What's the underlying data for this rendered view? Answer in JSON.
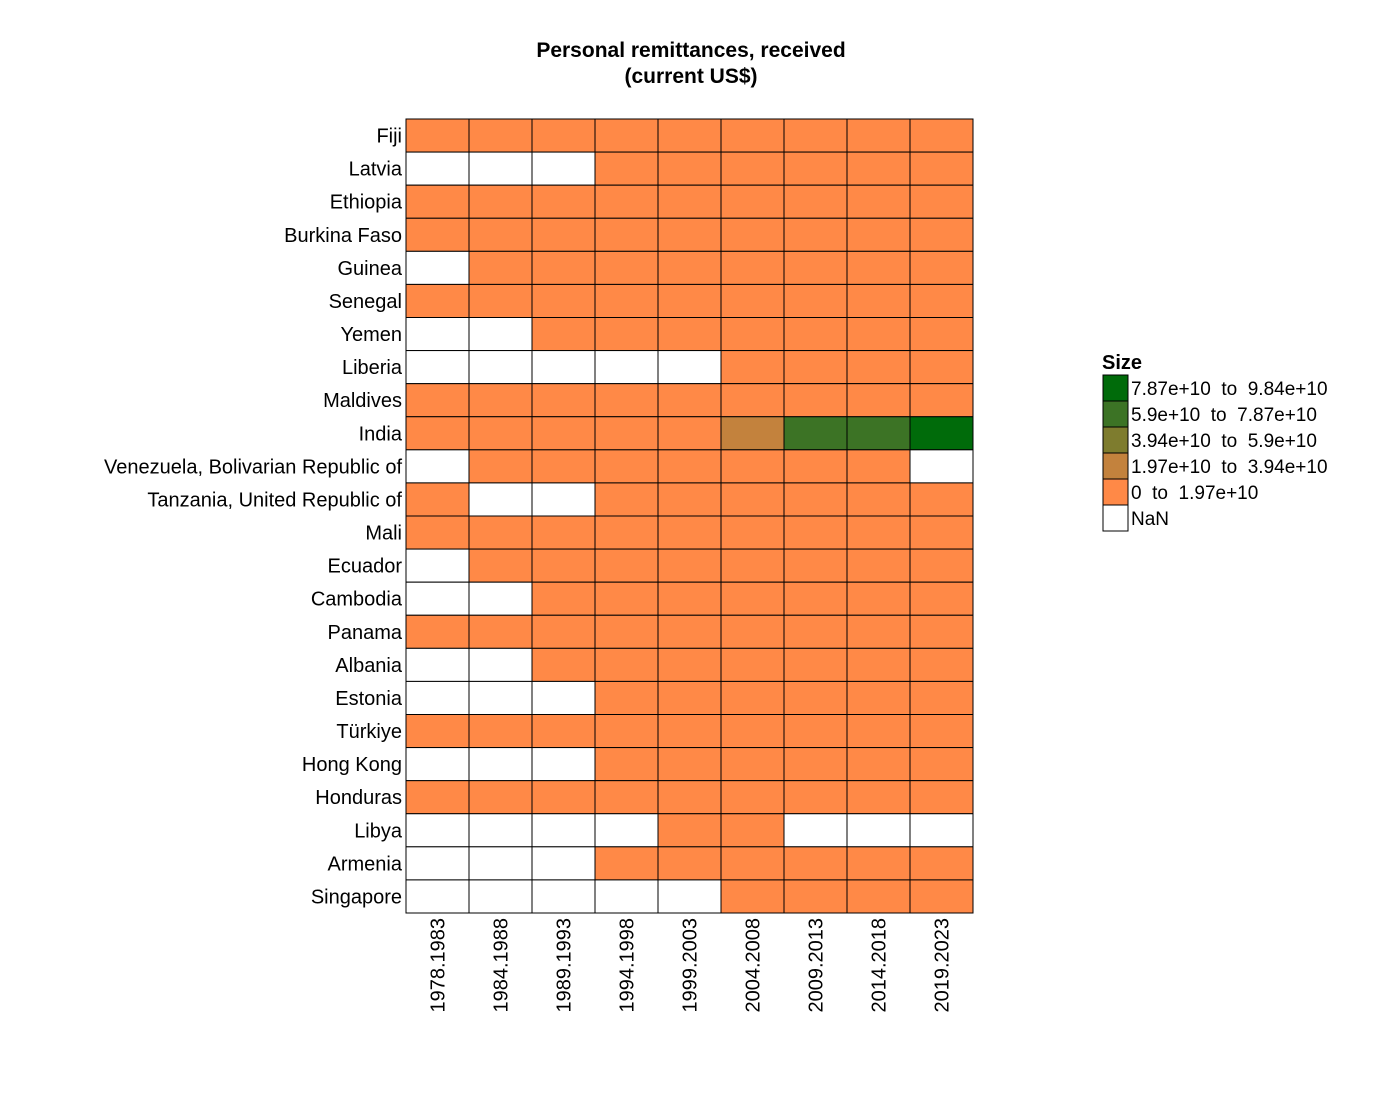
{
  "chart_data": {
    "type": "heatmap",
    "title_lines": [
      "Personal remittances, received",
      "(current US$)"
    ],
    "x": [
      "1978.1983",
      "1984.1988",
      "1989.1993",
      "1994.1998",
      "1999.2003",
      "2004.2008",
      "2009.2013",
      "2014.2018",
      "2019.2023"
    ],
    "y": [
      "Fiji",
      "Latvia",
      "Ethiopia",
      "Burkina Faso",
      "Guinea",
      "Senegal",
      "Yemen",
      "Liberia",
      "Maldives",
      "India",
      "Venezuela, Bolivarian Republic of",
      "Tanzania, United Republic of",
      "Mali",
      "Ecuador",
      "Cambodia",
      "Panama",
      "Albania",
      "Estonia",
      "Türkiye",
      "Hong Kong",
      "Honduras",
      "Libya",
      "Armenia",
      "Singapore"
    ],
    "bin_matrix": [
      [
        1,
        1,
        1,
        1,
        1,
        1,
        1,
        1,
        1
      ],
      [
        0,
        0,
        0,
        1,
        1,
        1,
        1,
        1,
        1
      ],
      [
        1,
        1,
        1,
        1,
        1,
        1,
        1,
        1,
        1
      ],
      [
        1,
        1,
        1,
        1,
        1,
        1,
        1,
        1,
        1
      ],
      [
        0,
        1,
        1,
        1,
        1,
        1,
        1,
        1,
        1
      ],
      [
        1,
        1,
        1,
        1,
        1,
        1,
        1,
        1,
        1
      ],
      [
        0,
        0,
        1,
        1,
        1,
        1,
        1,
        1,
        1
      ],
      [
        0,
        0,
        0,
        0,
        0,
        1,
        1,
        1,
        1
      ],
      [
        1,
        1,
        1,
        1,
        1,
        1,
        1,
        1,
        1
      ],
      [
        1,
        1,
        1,
        1,
        1,
        2,
        4,
        4,
        5
      ],
      [
        0,
        1,
        1,
        1,
        1,
        1,
        1,
        1,
        0
      ],
      [
        1,
        0,
        0,
        1,
        1,
        1,
        1,
        1,
        1
      ],
      [
        1,
        1,
        1,
        1,
        1,
        1,
        1,
        1,
        1
      ],
      [
        0,
        1,
        1,
        1,
        1,
        1,
        1,
        1,
        1
      ],
      [
        0,
        0,
        1,
        1,
        1,
        1,
        1,
        1,
        1
      ],
      [
        1,
        1,
        1,
        1,
        1,
        1,
        1,
        1,
        1
      ],
      [
        0,
        0,
        1,
        1,
        1,
        1,
        1,
        1,
        1
      ],
      [
        0,
        0,
        0,
        1,
        1,
        1,
        1,
        1,
        1
      ],
      [
        1,
        1,
        1,
        1,
        1,
        1,
        1,
        1,
        1
      ],
      [
        0,
        0,
        0,
        1,
        1,
        1,
        1,
        1,
        1
      ],
      [
        1,
        1,
        1,
        1,
        1,
        1,
        1,
        1,
        1
      ],
      [
        0,
        0,
        0,
        0,
        1,
        1,
        0,
        0,
        0
      ],
      [
        0,
        0,
        0,
        1,
        1,
        1,
        1,
        1,
        1
      ],
      [
        0,
        0,
        0,
        0,
        0,
        1,
        1,
        1,
        1
      ]
    ],
    "legend": {
      "title": "Size",
      "bins": [
        {
          "label": "7.87e+10  to  9.84e+10",
          "color": "#006b0a"
        },
        {
          "label": "5.9e+10  to  7.87e+10",
          "color": "#3c7325"
        },
        {
          "label": "3.94e+10  to  5.9e+10",
          "color": "#7e7c2e"
        },
        {
          "label": "1.97e+10  to  3.94e+10",
          "color": "#c3823d"
        },
        {
          "label": "0  to  1.97e+10",
          "color": "#ff8947"
        },
        {
          "label": "NaN",
          "color": "#ffffff"
        }
      ]
    },
    "bin_color_index": {
      "0": "#ffffff",
      "1": "#ff8947",
      "2": "#c3823d",
      "3": "#7e7c2e",
      "4": "#3c7325",
      "5": "#006b0a"
    }
  }
}
